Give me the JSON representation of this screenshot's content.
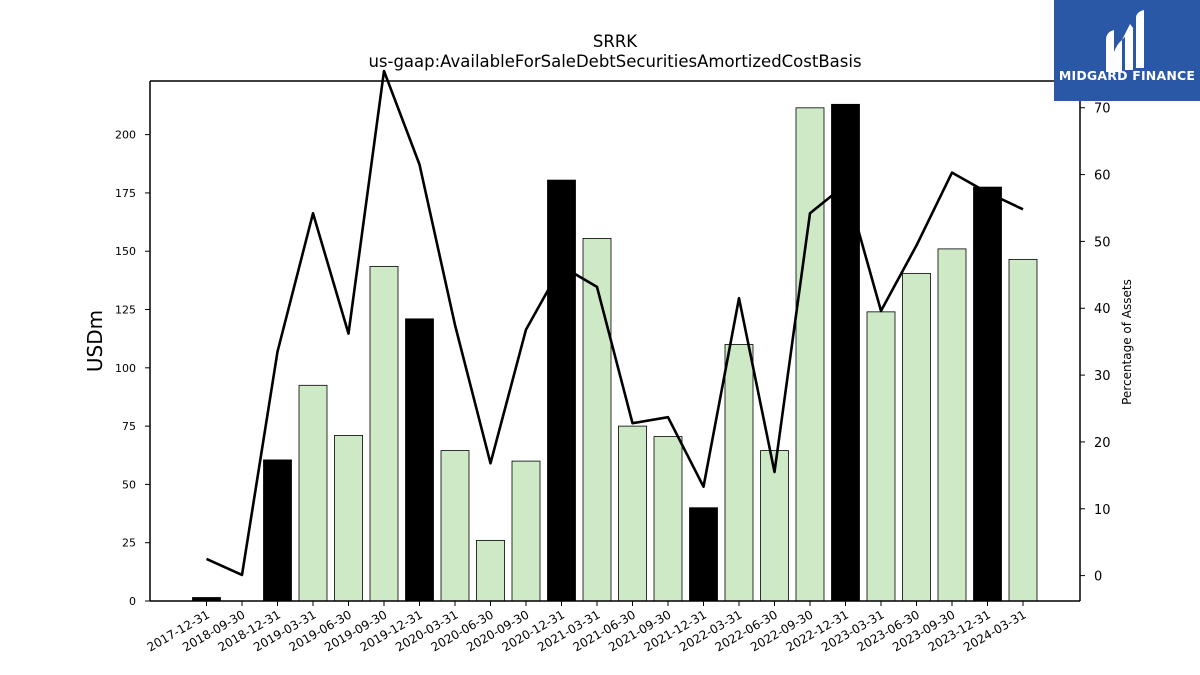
{
  "chart_data": {
    "type": "bar",
    "title": "SRRK",
    "subtitle": "us-gaap:AvailableForSaleDebtSecuritiesAmortizedCostBasis",
    "ylabel": "USDm",
    "y2label": "Percentage of Assets",
    "ylim": [
      0,
      223
    ],
    "y2lim": [
      -3.8,
      74
    ],
    "yticks": [
      0,
      25,
      50,
      75,
      100,
      125,
      150,
      175,
      200
    ],
    "y2ticks": [
      0,
      10,
      20,
      30,
      40,
      50,
      60,
      70
    ],
    "categories": [
      "2017-12-31",
      "2018-09-30",
      "2018-12-31",
      "2019-03-31",
      "2019-06-30",
      "2019-09-30",
      "2019-12-31",
      "2020-03-31",
      "2020-06-30",
      "2020-09-30",
      "2020-12-31",
      "2021-03-31",
      "2021-06-30",
      "2021-09-30",
      "2021-12-31",
      "2022-03-31",
      "2022-06-30",
      "2022-09-30",
      "2022-12-31",
      "2023-03-31",
      "2023-06-30",
      "2023-09-30",
      "2023-12-31",
      "2024-03-31"
    ],
    "series": [
      {
        "kind": "bar",
        "values": [
          1.5,
          0,
          60.5,
          92.5,
          71,
          143.5,
          121,
          64.5,
          26,
          60,
          180.5,
          155.5,
          75,
          70.5,
          40,
          110,
          64.5,
          211.5,
          213,
          124,
          140.5,
          151,
          177.5,
          146.5
        ],
        "year_end": [
          true,
          false,
          true,
          false,
          false,
          false,
          true,
          false,
          false,
          false,
          true,
          false,
          false,
          false,
          true,
          false,
          false,
          false,
          true,
          false,
          false,
          false,
          true,
          false
        ]
      },
      {
        "kind": "line",
        "axis": "right",
        "values": [
          2.5,
          0.1,
          33.5,
          54.2,
          36.2,
          75.5,
          61.5,
          37.5,
          16.8,
          36.8,
          46.3,
          43.2,
          22.8,
          23.7,
          13.3,
          41.5,
          15.5,
          54.2,
          58.5,
          39.6,
          49.4,
          60.3,
          57.3,
          54.8
        ]
      }
    ],
    "colors": {
      "year_end_bar": "#000000",
      "other_bar": "#cde9c6",
      "line": "#000000"
    },
    "grid": false
  },
  "logo": {
    "text": "MIDGARD FINANCE",
    "background": "#2b57a7"
  }
}
